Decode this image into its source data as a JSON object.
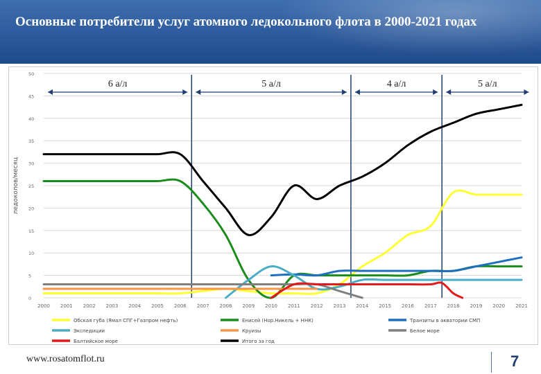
{
  "title": "Основные потребители услуг атомного ледокольного флота в 2000-2021 годах",
  "footer": {
    "url": "www.rosatomflot.ru",
    "page": "7"
  },
  "chart_data": {
    "type": "line",
    "ylabel": "ледоколов/месяц",
    "ylim": [
      0,
      50
    ],
    "yticks": [
      0,
      5,
      10,
      15,
      20,
      25,
      30,
      35,
      40,
      45,
      50
    ],
    "x": [
      2000,
      2001,
      2002,
      2003,
      2004,
      2005,
      2006,
      2007,
      2008,
      2009,
      2010,
      2011,
      2012,
      2013,
      2014,
      2015,
      2016,
      2017,
      2018,
      2019,
      2020,
      2021
    ],
    "grid": true,
    "legend_position": "bottom",
    "periods": [
      {
        "label": "6 а/л",
        "from": 2000,
        "to": 2006.5
      },
      {
        "label": "5 а/л",
        "from": 2006.5,
        "to": 2013.5
      },
      {
        "label": "4 а/л",
        "from": 2013.5,
        "to": 2017.5
      },
      {
        "label": "5 а/л",
        "from": 2017.5,
        "to": 2021.5
      }
    ],
    "series": [
      {
        "name": "Обская губа (Ямал СПГ+Газпром нефть)",
        "color": "#ffff33",
        "points": [
          [
            2000,
            1
          ],
          [
            2001,
            1
          ],
          [
            2002,
            1
          ],
          [
            2003,
            1
          ],
          [
            2004,
            1
          ],
          [
            2005,
            1
          ],
          [
            2006,
            1
          ],
          [
            2007,
            1.5
          ],
          [
            2008,
            2
          ],
          [
            2009,
            1.5
          ],
          [
            2010,
            1
          ],
          [
            2011,
            1
          ],
          [
            2012,
            1
          ],
          [
            2013,
            3
          ],
          [
            2014,
            7
          ],
          [
            2015,
            10
          ],
          [
            2016,
            14
          ],
          [
            2017,
            16
          ],
          [
            2018,
            23.5
          ],
          [
            2019,
            23
          ],
          [
            2020,
            23
          ],
          [
            2021,
            23
          ]
        ]
      },
      {
        "name": "Енисей (Нор.Никель + ННК)",
        "color": "#1a8c1a",
        "points": [
          [
            2000,
            26
          ],
          [
            2001,
            26
          ],
          [
            2002,
            26
          ],
          [
            2003,
            26
          ],
          [
            2004,
            26
          ],
          [
            2005,
            26
          ],
          [
            2006,
            26
          ],
          [
            2007,
            21
          ],
          [
            2008,
            14
          ],
          [
            2009,
            4
          ],
          [
            2010,
            0
          ],
          [
            2011,
            5
          ],
          [
            2012,
            5
          ],
          [
            2013,
            5
          ],
          [
            2014,
            5
          ],
          [
            2015,
            5
          ],
          [
            2016,
            5
          ],
          [
            2017,
            6
          ],
          [
            2018,
            6
          ],
          [
            2019,
            7
          ],
          [
            2020,
            7
          ],
          [
            2021,
            7
          ]
        ]
      },
      {
        "name": "Транзиты в акватории СМП",
        "color": "#1f6fc1",
        "points": [
          [
            2010,
            5
          ],
          [
            2011,
            5.2
          ],
          [
            2012,
            5
          ],
          [
            2013,
            6
          ],
          [
            2014,
            6
          ],
          [
            2015,
            6
          ],
          [
            2016,
            6
          ],
          [
            2017,
            6
          ],
          [
            2018,
            6
          ],
          [
            2019,
            7
          ],
          [
            2020,
            8
          ],
          [
            2021,
            9
          ]
        ]
      },
      {
        "name": "Экспедиции",
        "color": "#4bacc6",
        "points": [
          [
            2008,
            0
          ],
          [
            2009,
            4
          ],
          [
            2010,
            7
          ],
          [
            2011,
            5
          ],
          [
            2012,
            2
          ],
          [
            2013,
            2.5
          ],
          [
            2014,
            4
          ],
          [
            2015,
            4
          ],
          [
            2016,
            4
          ],
          [
            2017,
            4
          ],
          [
            2018,
            4
          ],
          [
            2019,
            4
          ],
          [
            2020,
            4
          ],
          [
            2021,
            4
          ]
        ]
      },
      {
        "name": "Круизы",
        "color": "#f79646",
        "points": [
          [
            2000,
            2
          ],
          [
            2001,
            2
          ],
          [
            2002,
            2
          ],
          [
            2003,
            2
          ],
          [
            2004,
            2
          ],
          [
            2005,
            2
          ],
          [
            2006,
            2
          ],
          [
            2007,
            2
          ],
          [
            2008,
            2
          ],
          [
            2009,
            2
          ],
          [
            2010,
            2
          ],
          [
            2011,
            2
          ],
          [
            2012,
            2
          ]
        ]
      },
      {
        "name": "Белое море",
        "color": "#808080",
        "points": [
          [
            2000,
            3
          ],
          [
            2001,
            3
          ],
          [
            2002,
            3
          ],
          [
            2003,
            3
          ],
          [
            2004,
            3
          ],
          [
            2005,
            3
          ],
          [
            2006,
            3
          ],
          [
            2007,
            3
          ],
          [
            2008,
            3
          ],
          [
            2009,
            3
          ],
          [
            2010,
            3
          ],
          [
            2011,
            3
          ],
          [
            2012,
            3
          ],
          [
            2013,
            1.5
          ],
          [
            2014,
            0
          ]
        ]
      },
      {
        "name": "Балтийское море",
        "color": "#e31a1c",
        "points": [
          [
            2010,
            0
          ],
          [
            2011,
            3
          ],
          [
            2012,
            3
          ],
          [
            2013,
            3
          ],
          [
            2014,
            3
          ],
          [
            2015,
            3
          ],
          [
            2016,
            3
          ],
          [
            2017,
            3
          ],
          [
            2017.5,
            3.3
          ],
          [
            2018,
            1
          ],
          [
            2018.4,
            0
          ]
        ]
      },
      {
        "name": "Итого за год",
        "color": "#000000",
        "points": [
          [
            2000,
            32
          ],
          [
            2001,
            32
          ],
          [
            2002,
            32
          ],
          [
            2003,
            32
          ],
          [
            2004,
            32
          ],
          [
            2005,
            32
          ],
          [
            2006,
            32
          ],
          [
            2007,
            26
          ],
          [
            2008,
            20
          ],
          [
            2009,
            14
          ],
          [
            2010,
            18
          ],
          [
            2011,
            25
          ],
          [
            2012,
            22
          ],
          [
            2013,
            25
          ],
          [
            2014,
            27
          ],
          [
            2015,
            30
          ],
          [
            2016,
            34
          ],
          [
            2017,
            37
          ],
          [
            2018,
            39
          ],
          [
            2019,
            41
          ],
          [
            2020,
            42
          ],
          [
            2021,
            43
          ]
        ]
      }
    ]
  }
}
